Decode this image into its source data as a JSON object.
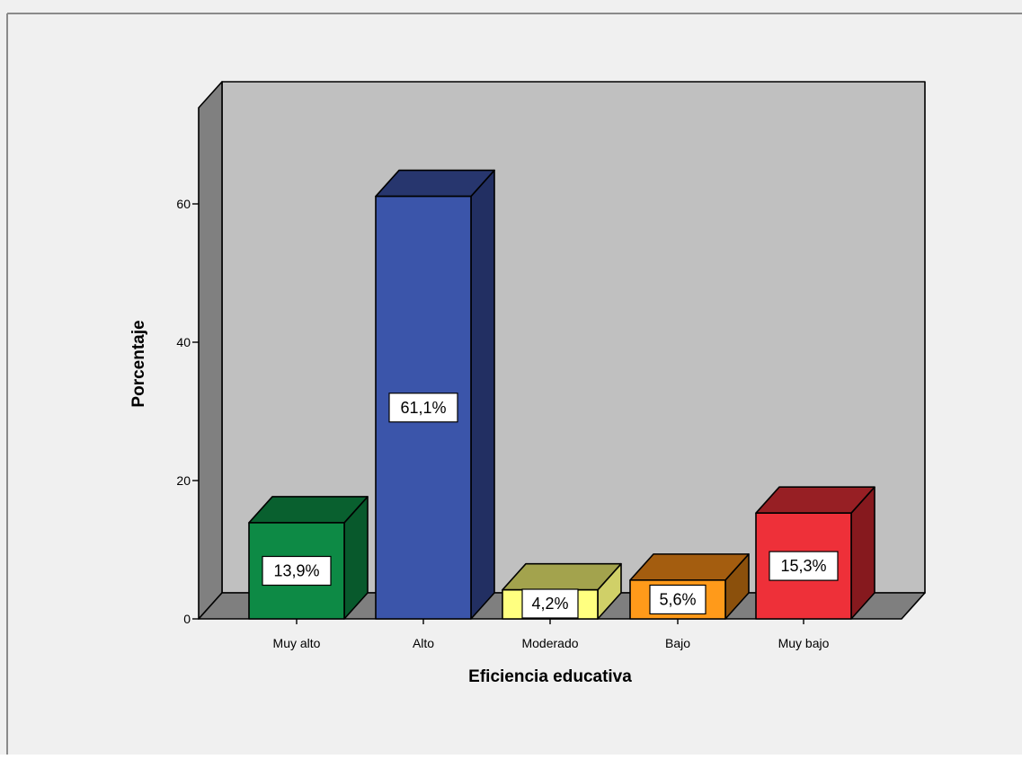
{
  "chart_data": {
    "type": "bar",
    "title": "",
    "xlabel": "Eficiencia educativa",
    "ylabel": "Porcentaje",
    "categories": [
      "Muy alto",
      "Alto",
      "Moderado",
      "Bajo",
      "Muy bajo"
    ],
    "values": [
      13.9,
      61.1,
      4.2,
      5.6,
      15.3
    ],
    "data_labels": [
      "13,9%",
      "61,1%",
      "4,2%",
      "5,6%",
      "15,3%"
    ],
    "yticks": [
      0,
      20,
      40,
      60
    ],
    "ytick_labels": [
      "0",
      "20",
      "40",
      "60"
    ],
    "ylim": [
      0,
      73
    ],
    "grid": false,
    "legend": "none",
    "bar_colors": {
      "front": [
        "#0d8a45",
        "#3b55aa",
        "#ffff80",
        "#ff9a1a",
        "#ee3039"
      ],
      "top": [
        "#09602f",
        "#27366e",
        "#a3a34d",
        "#a45d0f",
        "#971f24"
      ],
      "side": [
        "#08592c",
        "#222f62",
        "#d0d068",
        "#8b500c",
        "#86191e"
      ]
    },
    "colors": {
      "page_background": "#f0f0f0",
      "plot_back_wall": "#c0c0c0",
      "plot_side_wall": "#808080",
      "plot_floor": "#7f7f7f",
      "frame_border": "#8a8a8a"
    }
  }
}
